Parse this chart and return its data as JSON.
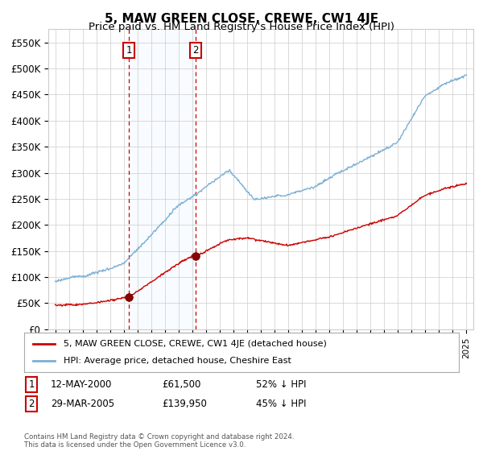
{
  "title": "5, MAW GREEN CLOSE, CREWE, CW1 4JE",
  "subtitle": "Price paid vs. HM Land Registry's House Price Index (HPI)",
  "ylabel_ticks": [
    "£0",
    "£50K",
    "£100K",
    "£150K",
    "£200K",
    "£250K",
    "£300K",
    "£350K",
    "£400K",
    "£450K",
    "£500K",
    "£550K"
  ],
  "ytick_values": [
    0,
    50000,
    100000,
    150000,
    200000,
    250000,
    300000,
    350000,
    400000,
    450000,
    500000,
    550000
  ],
  "xlim": [
    1994.5,
    2025.5
  ],
  "ylim": [
    0,
    575000
  ],
  "sale1_year": 2000.37,
  "sale1_price": 61500,
  "sale1_label": "1",
  "sale2_year": 2005.24,
  "sale2_price": 139950,
  "sale2_label": "2",
  "hpi_color": "#7bafd4",
  "price_color": "#cc0000",
  "sale_dot_color": "#8b0000",
  "vline_color": "#cc0000",
  "shade_color": "#ddeeff",
  "grid_color": "#cccccc",
  "background_color": "#ffffff",
  "legend_label_price": "5, MAW GREEN CLOSE, CREWE, CW1 4JE (detached house)",
  "legend_label_hpi": "HPI: Average price, detached house, Cheshire East",
  "annotation1_date": "12-MAY-2000",
  "annotation1_price": "£61,500",
  "annotation1_hpi": "52% ↓ HPI",
  "annotation2_date": "29-MAR-2005",
  "annotation2_price": "£139,950",
  "annotation2_hpi": "45% ↓ HPI",
  "footer": "Contains HM Land Registry data © Crown copyright and database right 2024.\nThis data is licensed under the Open Government Licence v3.0.",
  "title_fontsize": 11,
  "subtitle_fontsize": 9.5
}
